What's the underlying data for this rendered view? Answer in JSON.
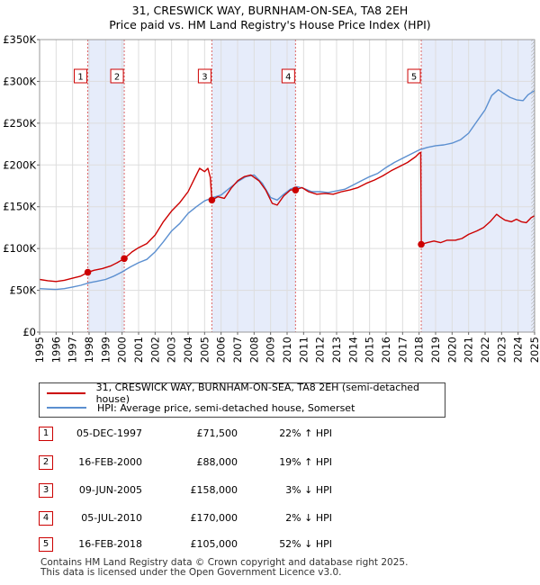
{
  "title_line1": "31, CRESWICK WAY, BURNHAM-ON-SEA, TA8 2EH",
  "title_line2": "Price paid vs. HM Land Registry's House Price Index (HPI)",
  "colors": {
    "property": "#cc0000",
    "hpi": "#5b8fd0",
    "shade": "#e6ecfa",
    "marker_line": "#dd6666",
    "grid": "#dddddd"
  },
  "chart_data": {
    "type": "line",
    "xlim": [
      1995,
      2025
    ],
    "ylim": [
      0,
      350000
    ],
    "y_ticks": [
      {
        "value": 0,
        "label": "£0"
      },
      {
        "value": 50000,
        "label": "£50K"
      },
      {
        "value": 100000,
        "label": "£100K"
      },
      {
        "value": 150000,
        "label": "£150K"
      },
      {
        "value": 200000,
        "label": "£200K"
      },
      {
        "value": 250000,
        "label": "£250K"
      },
      {
        "value": 300000,
        "label": "£300K"
      },
      {
        "value": 350000,
        "label": "£350K"
      }
    ],
    "x_ticks": [
      "1995",
      "1996",
      "1997",
      "1998",
      "1999",
      "2000",
      "2001",
      "2002",
      "2003",
      "2004",
      "2005",
      "2006",
      "2007",
      "2008",
      "2009",
      "2010",
      "2011",
      "2012",
      "2013",
      "2014",
      "2015",
      "2016",
      "2017",
      "2018",
      "2019",
      "2020",
      "2021",
      "2022",
      "2023",
      "2024",
      "2025"
    ],
    "shaded_ranges": [
      [
        1997.92,
        2000.13
      ],
      [
        2005.44,
        2010.51
      ],
      [
        2018.13,
        2025.0
      ]
    ],
    "hatched_after": 2024.8,
    "series": [
      {
        "name": "31, CRESWICK WAY, BURNHAM-ON-SEA, TA8 2EH (semi-detached house)",
        "color": "#cc0000",
        "points": [
          [
            1995.0,
            63000
          ],
          [
            1995.5,
            61500
          ],
          [
            1996.0,
            60500
          ],
          [
            1996.5,
            62000
          ],
          [
            1997.0,
            64500
          ],
          [
            1997.5,
            67000
          ],
          [
            1997.92,
            71500
          ],
          [
            1998.3,
            74000
          ],
          [
            1998.8,
            76000
          ],
          [
            1999.3,
            79000
          ],
          [
            1999.7,
            83000
          ],
          [
            2000.13,
            88000
          ],
          [
            2000.6,
            96000
          ],
          [
            2001.0,
            101000
          ],
          [
            2001.5,
            106000
          ],
          [
            2002.0,
            116000
          ],
          [
            2002.5,
            132000
          ],
          [
            2003.0,
            145000
          ],
          [
            2003.5,
            155000
          ],
          [
            2004.0,
            168000
          ],
          [
            2004.4,
            184000
          ],
          [
            2004.7,
            196000
          ],
          [
            2005.0,
            192000
          ],
          [
            2005.2,
            196000
          ],
          [
            2005.35,
            185000
          ],
          [
            2005.44,
            158000
          ],
          [
            2005.8,
            162000
          ],
          [
            2006.2,
            160000
          ],
          [
            2006.6,
            172000
          ],
          [
            2007.0,
            181000
          ],
          [
            2007.4,
            186000
          ],
          [
            2007.8,
            188000
          ],
          [
            2008.3,
            181000
          ],
          [
            2008.7,
            170000
          ],
          [
            2009.1,
            154000
          ],
          [
            2009.4,
            152000
          ],
          [
            2009.8,
            163000
          ],
          [
            2010.2,
            170000
          ],
          [
            2010.51,
            170000
          ],
          [
            2010.9,
            173000
          ],
          [
            2011.3,
            168000
          ],
          [
            2011.8,
            165000
          ],
          [
            2012.3,
            166000
          ],
          [
            2012.8,
            165000
          ],
          [
            2013.3,
            168000
          ],
          [
            2013.8,
            170000
          ],
          [
            2014.3,
            173000
          ],
          [
            2014.8,
            178000
          ],
          [
            2015.3,
            182000
          ],
          [
            2015.8,
            187000
          ],
          [
            2016.3,
            193000
          ],
          [
            2016.8,
            198000
          ],
          [
            2017.3,
            203000
          ],
          [
            2017.8,
            210000
          ],
          [
            2018.0,
            214000
          ],
          [
            2018.1,
            215000
          ],
          [
            2018.13,
            105000
          ],
          [
            2018.5,
            107000
          ],
          [
            2018.9,
            109000
          ],
          [
            2019.3,
            107000
          ],
          [
            2019.7,
            110000
          ],
          [
            2020.2,
            110000
          ],
          [
            2020.6,
            112000
          ],
          [
            2021.0,
            117000
          ],
          [
            2021.5,
            121000
          ],
          [
            2021.9,
            125000
          ],
          [
            2022.3,
            132000
          ],
          [
            2022.7,
            141000
          ],
          [
            2022.9,
            138000
          ],
          [
            2023.2,
            134000
          ],
          [
            2023.6,
            132000
          ],
          [
            2023.9,
            135000
          ],
          [
            2024.2,
            132000
          ],
          [
            2024.5,
            131000
          ],
          [
            2024.8,
            137000
          ],
          [
            2025.0,
            139000
          ]
        ]
      },
      {
        "name": "HPI: Average price, semi-detached house, Somerset",
        "color": "#5b8fd0",
        "points": [
          [
            1995.0,
            52000
          ],
          [
            1995.5,
            51500
          ],
          [
            1996.0,
            51000
          ],
          [
            1996.5,
            52000
          ],
          [
            1997.0,
            54000
          ],
          [
            1997.5,
            56000
          ],
          [
            1998.0,
            59000
          ],
          [
            1998.5,
            61000
          ],
          [
            1999.0,
            63000
          ],
          [
            1999.5,
            67000
          ],
          [
            2000.0,
            72000
          ],
          [
            2000.5,
            78000
          ],
          [
            2001.0,
            83000
          ],
          [
            2001.5,
            87000
          ],
          [
            2002.0,
            96000
          ],
          [
            2002.5,
            108000
          ],
          [
            2003.0,
            121000
          ],
          [
            2003.5,
            130000
          ],
          [
            2004.0,
            142000
          ],
          [
            2004.5,
            150000
          ],
          [
            2005.0,
            157000
          ],
          [
            2005.5,
            161000
          ],
          [
            2006.0,
            164000
          ],
          [
            2006.5,
            172000
          ],
          [
            2007.0,
            180000
          ],
          [
            2007.5,
            186000
          ],
          [
            2008.0,
            188000
          ],
          [
            2008.5,
            178000
          ],
          [
            2009.0,
            161000
          ],
          [
            2009.4,
            158000
          ],
          [
            2009.8,
            165000
          ],
          [
            2010.2,
            171000
          ],
          [
            2010.6,
            174000
          ],
          [
            2011.0,
            172000
          ],
          [
            2011.5,
            168000
          ],
          [
            2012.0,
            168000
          ],
          [
            2012.5,
            167000
          ],
          [
            2013.0,
            169000
          ],
          [
            2013.5,
            171000
          ],
          [
            2014.0,
            176000
          ],
          [
            2014.5,
            181000
          ],
          [
            2015.0,
            186000
          ],
          [
            2015.5,
            190000
          ],
          [
            2016.0,
            197000
          ],
          [
            2016.5,
            203000
          ],
          [
            2017.0,
            208000
          ],
          [
            2017.5,
            213000
          ],
          [
            2018.0,
            218000
          ],
          [
            2018.5,
            221000
          ],
          [
            2019.0,
            223000
          ],
          [
            2019.5,
            224000
          ],
          [
            2020.0,
            226000
          ],
          [
            2020.5,
            230000
          ],
          [
            2021.0,
            238000
          ],
          [
            2021.5,
            252000
          ],
          [
            2022.0,
            266000
          ],
          [
            2022.4,
            283000
          ],
          [
            2022.8,
            290000
          ],
          [
            2023.1,
            286000
          ],
          [
            2023.5,
            281000
          ],
          [
            2023.9,
            278000
          ],
          [
            2024.3,
            277000
          ],
          [
            2024.6,
            284000
          ],
          [
            2025.0,
            289000
          ]
        ]
      }
    ],
    "sale_markers": [
      {
        "num": "1",
        "x": 1997.92,
        "y": 71500
      },
      {
        "num": "2",
        "x": 2000.13,
        "y": 88000
      },
      {
        "num": "3",
        "x": 2005.44,
        "y": 158000
      },
      {
        "num": "4",
        "x": 2010.51,
        "y": 170000
      },
      {
        "num": "5",
        "x": 2018.13,
        "y": 105000
      }
    ]
  },
  "legend": {
    "property_label": "31, CRESWICK WAY, BURNHAM-ON-SEA, TA8 2EH (semi-detached house)",
    "hpi_label": "HPI: Average price, semi-detached house, Somerset"
  },
  "sales": [
    {
      "num": "1",
      "date": "05-DEC-1997",
      "price": "£71,500",
      "hpi": "22% ↑ HPI"
    },
    {
      "num": "2",
      "date": "16-FEB-2000",
      "price": "£88,000",
      "hpi": "19% ↑ HPI"
    },
    {
      "num": "3",
      "date": "09-JUN-2005",
      "price": "£158,000",
      "hpi": "3% ↓ HPI"
    },
    {
      "num": "4",
      "date": "05-JUL-2010",
      "price": "£170,000",
      "hpi": "2% ↓ HPI"
    },
    {
      "num": "5",
      "date": "16-FEB-2018",
      "price": "£105,000",
      "hpi": "52% ↓ HPI"
    }
  ],
  "footer": {
    "line1": "Contains HM Land Registry data © Crown copyright and database right 2025.",
    "line2": "This data is licensed under the Open Government Licence v3.0."
  }
}
